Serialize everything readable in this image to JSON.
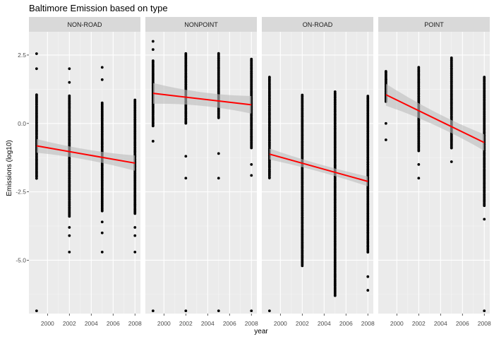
{
  "chart_data": {
    "type": "scatter",
    "title": "Baltimore Emission based on type",
    "xlabel": "year",
    "ylabel": "Emissions (log10)",
    "xlim": [
      1998.3,
      2008.5
    ],
    "ylim": [
      -6.95,
      3.35
    ],
    "x_ticks": [
      2000,
      2002,
      2004,
      2006,
      2008
    ],
    "y_ticks": [
      -5.0,
      -2.5,
      0.0,
      2.5
    ],
    "y_tick_labels": [
      "-5.0",
      "-2.5",
      "0.0",
      "2.5"
    ],
    "grid": true,
    "years": [
      1999,
      2002,
      2005,
      2008
    ],
    "point_color": "#000000",
    "fit_color": "#ff0000",
    "band_color": "#bdbdbd",
    "panel_bg": "#ebebeb",
    "strip_bg": "#d9d9d9",
    "facets": [
      {
        "label": "NON-ROAD",
        "fit": {
          "y1999": -0.82,
          "y2008": -1.45,
          "se1999": 0.25,
          "se2008": 0.28
        },
        "points": [
          {
            "year": 1999,
            "ranges": [
              [
                -2.0,
                1.05
              ]
            ],
            "extra": [
              2.55,
              2.0,
              -6.85
            ]
          },
          {
            "year": 2002,
            "ranges": [
              [
                -3.4,
                1.0
              ]
            ],
            "extra": [
              2.0,
              1.5,
              -3.8,
              -4.1,
              -4.7
            ]
          },
          {
            "year": 2005,
            "ranges": [
              [
                -3.2,
                0.75
              ]
            ],
            "extra": [
              2.05,
              1.6,
              -3.6,
              -4.0,
              -4.7
            ]
          },
          {
            "year": 2008,
            "ranges": [
              [
                -3.3,
                0.85
              ]
            ],
            "extra": [
              -3.8,
              -4.1,
              -4.7
            ]
          }
        ]
      },
      {
        "label": "NONPOINT",
        "fit": {
          "y1999": 1.1,
          "y2008": 0.68,
          "se1999": 0.38,
          "se2008": 0.32
        },
        "points": [
          {
            "year": 1999,
            "ranges": [
              [
                -0.1,
                2.3
              ]
            ],
            "extra": [
              3.0,
              2.7,
              -0.65,
              -6.85
            ]
          },
          {
            "year": 2002,
            "ranges": [
              [
                0.0,
                2.55
              ]
            ],
            "extra": [
              -1.2,
              -2.0,
              -6.85
            ]
          },
          {
            "year": 2005,
            "ranges": [
              [
                0.2,
                2.55
              ]
            ],
            "extra": [
              -1.1,
              -2.0,
              -6.85
            ]
          },
          {
            "year": 2008,
            "ranges": [
              [
                -0.9,
                2.35
              ]
            ],
            "extra": [
              -1.5,
              -1.9,
              -6.85
            ]
          }
        ]
      },
      {
        "label": "ON-ROAD",
        "fit": {
          "y1999": -1.12,
          "y2008": -2.12,
          "se1999": 0.2,
          "se2008": 0.18
        },
        "points": [
          {
            "year": 1999,
            "ranges": [
              [
                -2.0,
                1.7
              ]
            ],
            "extra": [
              -6.85
            ]
          },
          {
            "year": 2002,
            "ranges": [
              [
                -5.2,
                1.05
              ]
            ],
            "extra": []
          },
          {
            "year": 2005,
            "ranges": [
              [
                -6.3,
                1.15
              ]
            ],
            "extra": []
          },
          {
            "year": 2008,
            "ranges": [
              [
                -4.7,
                1.0
              ]
            ],
            "extra": [
              -5.6,
              -6.1
            ]
          }
        ]
      },
      {
        "label": "POINT",
        "fit": {
          "y1999": 1.05,
          "y2008": -0.7,
          "se1999": 0.4,
          "se2008": 0.3
        },
        "points": [
          {
            "year": 1999,
            "ranges": [
              [
                0.8,
                1.9
              ]
            ],
            "extra": [
              0.0,
              -0.6,
              1.6
            ]
          },
          {
            "year": 2002,
            "ranges": [
              [
                -1.0,
                2.05
              ]
            ],
            "extra": [
              -1.5,
              -2.0
            ]
          },
          {
            "year": 2005,
            "ranges": [
              [
                -0.9,
                2.4
              ]
            ],
            "extra": [
              -1.4
            ]
          },
          {
            "year": 2008,
            "ranges": [
              [
                -3.0,
                1.7
              ]
            ],
            "extra": [
              -3.5,
              -6.85
            ]
          }
        ]
      }
    ]
  }
}
